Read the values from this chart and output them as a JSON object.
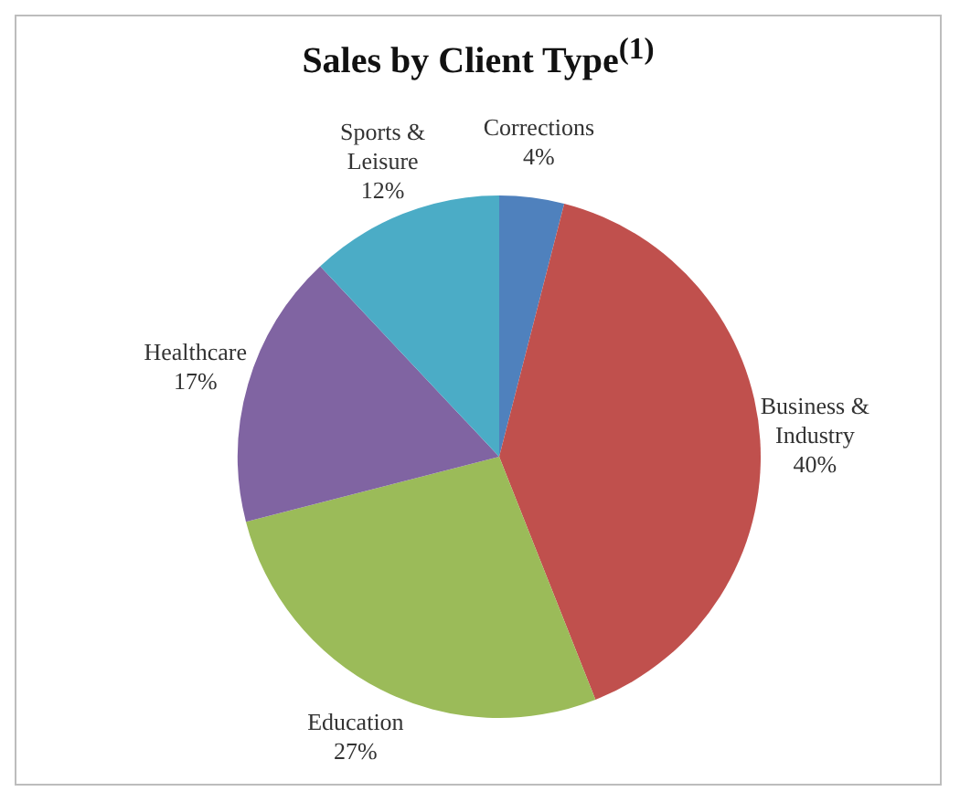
{
  "chart_data": {
    "type": "pie",
    "title": "Sales by Client Type$^{(1)}$",
    "categories": [
      "Corrections",
      "Business & Industry",
      "Education",
      "Healthcare",
      "Sports & Leisure"
    ],
    "values": [
      4,
      40,
      27,
      17,
      12
    ],
    "value_labels": [
      "4%",
      "40%",
      "27%",
      "17%",
      "12%"
    ],
    "colors": [
      "#4f81bd",
      "#c0504d",
      "#9bbb59",
      "#8064a2",
      "#4bacc6"
    ],
    "legend": false
  }
}
